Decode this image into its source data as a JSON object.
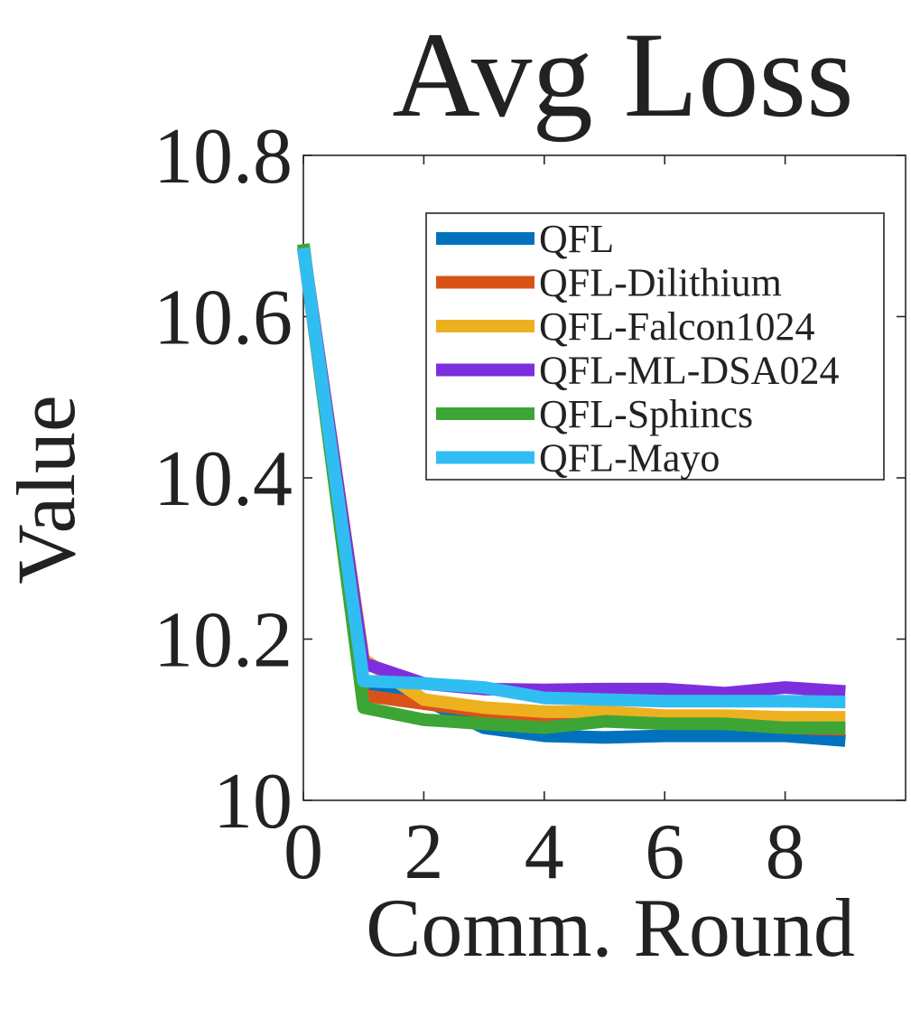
{
  "chart_data": {
    "type": "line",
    "title": "Avg Loss",
    "xlabel": "Comm. Round",
    "ylabel": "Value",
    "xlim": [
      0,
      10
    ],
    "ylim": [
      10,
      10.8
    ],
    "x_ticks": [
      0,
      2,
      4,
      6,
      8
    ],
    "x_tick_labels": [
      "0",
      "2",
      "4",
      "6",
      "8"
    ],
    "y_ticks": [
      10,
      10.2,
      10.4,
      10.6,
      10.8
    ],
    "y_tick_labels": [
      "10",
      "10.2",
      "10.4",
      "10.6",
      "10.8"
    ],
    "grid": false,
    "legend_position": "top-right",
    "x": [
      0,
      1,
      2,
      3,
      4,
      5,
      6,
      7,
      8,
      9
    ],
    "series": [
      {
        "name": "QFL",
        "color": "#0072BD",
        "values": [
          10.685,
          10.145,
          10.125,
          10.09,
          10.08,
          10.078,
          10.08,
          10.08,
          10.08,
          10.074
        ]
      },
      {
        "name": "QFL-Dilithium",
        "color": "#D95319",
        "values": [
          10.685,
          10.13,
          10.12,
          10.11,
          10.105,
          10.1,
          10.098,
          10.095,
          10.09,
          10.088
        ]
      },
      {
        "name": "QFL-Falcon1024",
        "color": "#EDB120",
        "values": [
          10.685,
          10.175,
          10.125,
          10.115,
          10.11,
          10.11,
          10.105,
          10.105,
          10.103,
          10.103
        ]
      },
      {
        "name": "QFL-ML-DSA024",
        "color": "#7E2FDD",
        "values": [
          10.685,
          10.17,
          10.145,
          10.138,
          10.137,
          10.138,
          10.138,
          10.133,
          10.14,
          10.135
        ]
      },
      {
        "name": "QFL-Sphincs",
        "color": "#3DA535",
        "values": [
          10.69,
          10.115,
          10.1,
          10.095,
          10.09,
          10.098,
          10.095,
          10.095,
          10.09,
          10.09
        ]
      },
      {
        "name": "QFL-Mayo",
        "color": "#30BEF2",
        "values": [
          10.685,
          10.148,
          10.145,
          10.14,
          10.127,
          10.125,
          10.123,
          10.123,
          10.123,
          10.122
        ]
      }
    ]
  }
}
